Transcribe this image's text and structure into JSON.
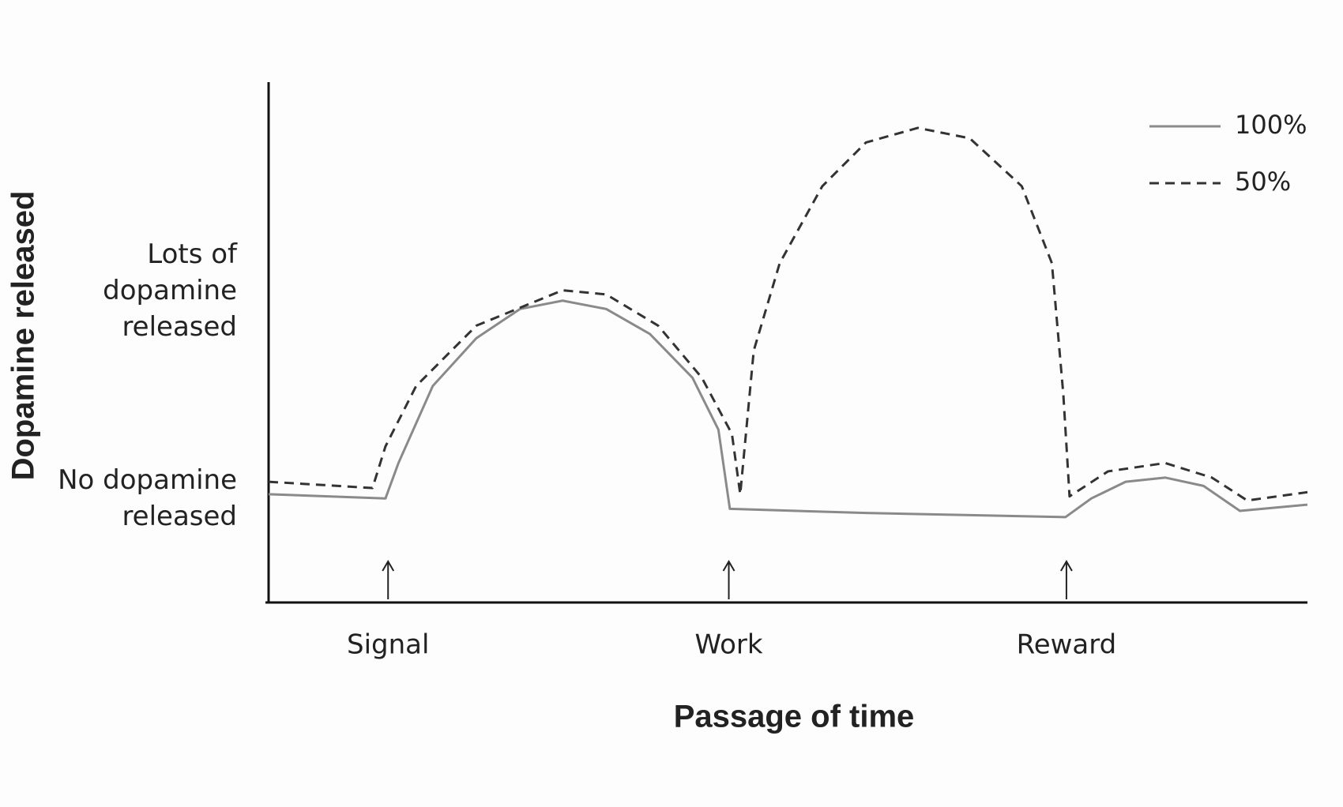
{
  "chart_data": {
    "type": "line",
    "ylabel": "Dopamine released",
    "xlabel": "Passage of time",
    "xlim": [
      0,
      100
    ],
    "ylim": [
      -0.5,
      2
    ],
    "yticks": [
      {
        "value": 1,
        "label": "Lots of dopamine released"
      },
      {
        "value": 0,
        "label": "No dopamine released"
      }
    ],
    "events": [
      {
        "label": "Signal",
        "x": 11.5
      },
      {
        "label": "Work",
        "x": 44.3
      },
      {
        "label": "Reward",
        "x": 76.8
      }
    ],
    "legend": "upper right",
    "series": [
      {
        "name": "100%",
        "color": "#8a8a8a",
        "style": "solid",
        "x": [
          0,
          11.25,
          12.5,
          15.8,
          20,
          24.2,
          28.3,
          32.5,
          36.7,
          40.8,
          43.3,
          44.4,
          57.5,
          76.7,
          79.2,
          82.5,
          86.3,
          90,
          93.5,
          100
        ],
        "values": [
          0.02,
          0,
          0.17,
          0.54,
          0.77,
          0.91,
          0.95,
          0.91,
          0.79,
          0.58,
          0.33,
          -0.05,
          -0.07,
          -0.09,
          0,
          0.08,
          0.1,
          0.06,
          -0.06,
          -0.03
        ]
      },
      {
        "name": "50%",
        "color": "#333333",
        "style": "dashed",
        "x": [
          0,
          10,
          11.25,
          14.2,
          20,
          28.3,
          32.5,
          37.5,
          41.7,
          44.6,
          45.4,
          46.7,
          49.2,
          53.3,
          57.5,
          62.5,
          67.5,
          72.5,
          75.4,
          76.5,
          77.1,
          80.8,
          86.3,
          90.8,
          94.2,
          100
        ],
        "values": [
          0.08,
          0.05,
          0.25,
          0.54,
          0.83,
          1.0,
          0.98,
          0.83,
          0.58,
          0.31,
          0.02,
          0.71,
          1.13,
          1.5,
          1.71,
          1.78,
          1.73,
          1.5,
          1.13,
          0.5,
          0.01,
          0.13,
          0.17,
          0.1,
          -0.01,
          0.03
        ]
      }
    ]
  }
}
